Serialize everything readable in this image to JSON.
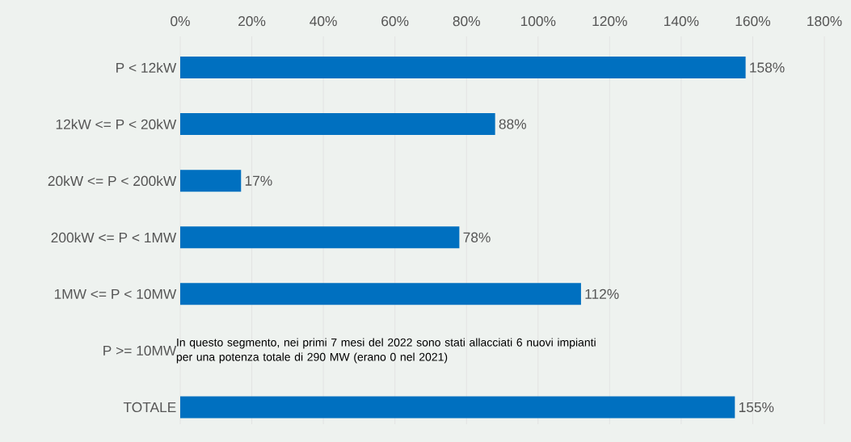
{
  "chart_data": {
    "type": "bar",
    "orientation": "horizontal",
    "categories": [
      "P < 12kW",
      "12kW <= P < 20kW",
      "20kW <= P < 200kW",
      "200kW <= P < 1MW",
      "1MW <= P < 10MW",
      "P >= 10MW",
      "TOTALE"
    ],
    "values": [
      158,
      88,
      17,
      78,
      112,
      null,
      155
    ],
    "value_labels": [
      "158%",
      "88%",
      "17%",
      "78%",
      "112%",
      null,
      "155%"
    ],
    "color": "#0070c0",
    "xlim": [
      0,
      180
    ],
    "xticks": [
      {
        "value": 0,
        "label": "0%"
      },
      {
        "value": 20,
        "label": "20%"
      },
      {
        "value": 40,
        "label": "40%"
      },
      {
        "value": 60,
        "label": "60%"
      },
      {
        "value": 80,
        "label": "80%"
      },
      {
        "value": 100,
        "label": "100%"
      },
      {
        "value": 120,
        "label": "120%"
      },
      {
        "value": 140,
        "label": "140%"
      },
      {
        "value": 160,
        "label": "160%"
      },
      {
        "value": 180,
        "label": "180%"
      }
    ],
    "grid": "x",
    "annotations": [
      "In questo segmento, nei primi 7 mesi del 2022 sono stati allacciati 6 nuovi impianti per una potenza totale di 290 MW (erano 0 nel 2021)"
    ]
  }
}
